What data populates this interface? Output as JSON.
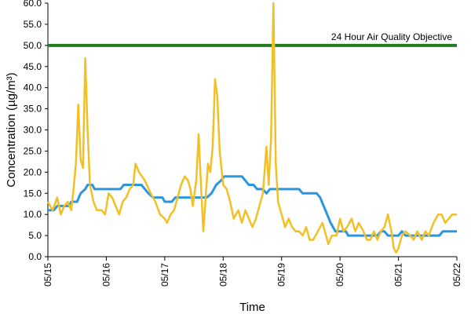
{
  "chart_data": {
    "type": "line",
    "xlabel": "Time",
    "ylabel": "Concentration (µg/m³)",
    "x_tick_labels": [
      "05/15",
      "05/16",
      "05/17",
      "05/18",
      "05/19",
      "05/20",
      "05/21",
      "05/22"
    ],
    "x_range_days": [
      0,
      7
    ],
    "ylim": [
      0,
      60
    ],
    "y_ticks": [
      0,
      5,
      10,
      15,
      20,
      25,
      30,
      35,
      40,
      45,
      50,
      55,
      60
    ],
    "y_tick_labels": [
      "0.0",
      "5.0",
      "10.0",
      "15.0",
      "20.0",
      "25.0",
      "30.0",
      "35.0",
      "40.0",
      "45.0",
      "50.0",
      "55.0",
      "60.0"
    ],
    "grid": false,
    "colors": {
      "hourly": "#f2c026",
      "rolling_24h": "#2a96e0",
      "objective": "#1f7d1f"
    },
    "objective": {
      "value": 50,
      "label": "24 Hour Air Quality Objective"
    },
    "series": [
      {
        "key": "hourly",
        "points": [
          [
            0.0,
            13
          ],
          [
            0.08,
            11
          ],
          [
            0.16,
            14
          ],
          [
            0.22,
            10
          ],
          [
            0.28,
            12
          ],
          [
            0.34,
            13
          ],
          [
            0.4,
            11
          ],
          [
            0.44,
            16
          ],
          [
            0.48,
            22
          ],
          [
            0.52,
            36
          ],
          [
            0.56,
            23
          ],
          [
            0.6,
            21
          ],
          [
            0.64,
            47
          ],
          [
            0.68,
            30
          ],
          [
            0.72,
            17
          ],
          [
            0.78,
            13
          ],
          [
            0.84,
            11
          ],
          [
            0.92,
            11
          ],
          [
            0.98,
            10
          ],
          [
            1.04,
            15
          ],
          [
            1.1,
            14
          ],
          [
            1.16,
            12
          ],
          [
            1.22,
            10
          ],
          [
            1.28,
            13
          ],
          [
            1.34,
            14
          ],
          [
            1.4,
            16
          ],
          [
            1.46,
            17
          ],
          [
            1.5,
            22
          ],
          [
            1.56,
            20
          ],
          [
            1.66,
            18
          ],
          [
            1.76,
            15
          ],
          [
            1.84,
            13
          ],
          [
            1.92,
            10
          ],
          [
            2.0,
            9
          ],
          [
            2.04,
            8
          ],
          [
            2.1,
            10
          ],
          [
            2.16,
            11
          ],
          [
            2.22,
            14
          ],
          [
            2.28,
            17
          ],
          [
            2.34,
            19
          ],
          [
            2.4,
            18
          ],
          [
            2.44,
            16
          ],
          [
            2.48,
            12
          ],
          [
            2.54,
            18
          ],
          [
            2.58,
            29
          ],
          [
            2.62,
            17
          ],
          [
            2.66,
            6
          ],
          [
            2.7,
            14
          ],
          [
            2.74,
            22
          ],
          [
            2.78,
            20
          ],
          [
            2.82,
            26
          ],
          [
            2.86,
            42
          ],
          [
            2.9,
            38
          ],
          [
            2.94,
            25
          ],
          [
            3.0,
            17
          ],
          [
            3.06,
            16
          ],
          [
            3.12,
            13
          ],
          [
            3.18,
            9
          ],
          [
            3.26,
            11
          ],
          [
            3.32,
            8
          ],
          [
            3.38,
            11
          ],
          [
            3.44,
            9
          ],
          [
            3.5,
            7
          ],
          [
            3.56,
            9
          ],
          [
            3.62,
            12
          ],
          [
            3.68,
            15
          ],
          [
            3.74,
            26
          ],
          [
            3.78,
            17
          ],
          [
            3.82,
            28
          ],
          [
            3.86,
            60
          ],
          [
            3.9,
            22
          ],
          [
            3.94,
            13
          ],
          [
            4.0,
            10
          ],
          [
            4.06,
            7
          ],
          [
            4.12,
            9
          ],
          [
            4.18,
            7
          ],
          [
            4.24,
            6
          ],
          [
            4.3,
            6
          ],
          [
            4.36,
            5
          ],
          [
            4.42,
            7
          ],
          [
            4.48,
            4
          ],
          [
            4.54,
            4
          ],
          [
            4.62,
            6
          ],
          [
            4.7,
            8
          ],
          [
            4.76,
            5
          ],
          [
            4.8,
            3
          ],
          [
            4.86,
            5
          ],
          [
            4.94,
            5
          ],
          [
            5.0,
            9
          ],
          [
            5.06,
            6
          ],
          [
            5.12,
            7
          ],
          [
            5.2,
            9
          ],
          [
            5.26,
            6
          ],
          [
            5.32,
            8
          ],
          [
            5.4,
            6
          ],
          [
            5.46,
            4
          ],
          [
            5.52,
            4
          ],
          [
            5.58,
            6
          ],
          [
            5.64,
            4
          ],
          [
            5.7,
            6
          ],
          [
            5.76,
            7
          ],
          [
            5.82,
            10
          ],
          [
            5.88,
            6
          ],
          [
            5.92,
            2
          ],
          [
            5.96,
            1
          ],
          [
            6.0,
            2
          ],
          [
            6.06,
            5
          ],
          [
            6.12,
            6
          ],
          [
            6.2,
            5
          ],
          [
            6.26,
            4
          ],
          [
            6.32,
            6
          ],
          [
            6.4,
            4
          ],
          [
            6.46,
            6
          ],
          [
            6.52,
            5
          ],
          [
            6.6,
            8
          ],
          [
            6.68,
            10
          ],
          [
            6.74,
            10
          ],
          [
            6.8,
            8
          ],
          [
            6.86,
            9
          ],
          [
            6.92,
            10
          ],
          [
            7.0,
            10
          ]
        ]
      },
      {
        "key": "rolling_24h",
        "points": [
          [
            0.0,
            11
          ],
          [
            0.1,
            11
          ],
          [
            0.16,
            12
          ],
          [
            0.36,
            12
          ],
          [
            0.4,
            13
          ],
          [
            0.5,
            13
          ],
          [
            0.56,
            15
          ],
          [
            0.64,
            16
          ],
          [
            0.68,
            17
          ],
          [
            0.76,
            17
          ],
          [
            0.8,
            16
          ],
          [
            1.24,
            16
          ],
          [
            1.3,
            17
          ],
          [
            1.6,
            17
          ],
          [
            1.66,
            16
          ],
          [
            1.72,
            15
          ],
          [
            1.8,
            14
          ],
          [
            1.88,
            14
          ],
          [
            1.96,
            14
          ],
          [
            2.0,
            13
          ],
          [
            2.12,
            13
          ],
          [
            2.18,
            14
          ],
          [
            2.72,
            14
          ],
          [
            2.8,
            15
          ],
          [
            2.88,
            17
          ],
          [
            2.96,
            18
          ],
          [
            3.02,
            19
          ],
          [
            3.32,
            19
          ],
          [
            3.38,
            18
          ],
          [
            3.44,
            17
          ],
          [
            3.52,
            17
          ],
          [
            3.58,
            16
          ],
          [
            3.68,
            16
          ],
          [
            3.74,
            15
          ],
          [
            3.8,
            16
          ],
          [
            4.3,
            16
          ],
          [
            4.36,
            15
          ],
          [
            4.6,
            15
          ],
          [
            4.66,
            14
          ],
          [
            4.72,
            12
          ],
          [
            4.78,
            10
          ],
          [
            4.84,
            8
          ],
          [
            4.92,
            6
          ],
          [
            5.1,
            6
          ],
          [
            5.14,
            5
          ],
          [
            5.64,
            5
          ],
          [
            5.7,
            6
          ],
          [
            5.76,
            6
          ],
          [
            5.82,
            5
          ],
          [
            6.0,
            5
          ],
          [
            6.06,
            6
          ],
          [
            6.12,
            5
          ],
          [
            6.7,
            5
          ],
          [
            6.76,
            6
          ],
          [
            7.0,
            6
          ]
        ]
      }
    ]
  }
}
